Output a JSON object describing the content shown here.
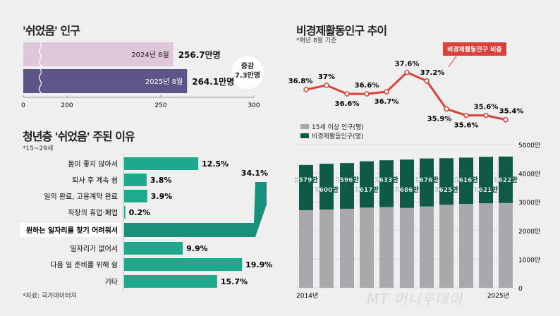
{
  "panel1": {
    "title": "'쉬었음' 인구",
    "change_label": "증감",
    "change_value": "7.3만명"
  },
  "panel2": {
    "title": "청년층 '쉬었음' 주된 이유",
    "note": "*15~29세",
    "source": "*자료: 국가데이터처"
  },
  "panel3": {
    "title": "비경제활동인구 추이",
    "note": "*매년 8월 기준",
    "callout": "비경제활동인구 비중",
    "legend": [
      "15세 이상 인구(명)",
      "비경제활동인구(명)"
    ]
  },
  "watermark": "MT 머니투데이",
  "colors": {
    "bar2024": "#dfc6d9",
    "bar2025": "#5d5487",
    "reasons": "#1ea98d",
    "reasons_highlight": "#17917a",
    "line": "#d9413a",
    "gray": "#a9a9ab",
    "green": "#0f5a45"
  },
  "chart_data": [
    {
      "type": "bar",
      "orientation": "horizontal",
      "categories": [
        "2024년 8월",
        "2025년 8월"
      ],
      "values": [
        256.7,
        264.1
      ],
      "value_labels": [
        "256.7만명",
        "264.1만명"
      ],
      "xlim": [
        0,
        300
      ],
      "axis_break": true,
      "xticks": [
        "0",
        "200",
        "250",
        "300"
      ]
    },
    {
      "type": "bar",
      "orientation": "horizontal",
      "categories": [
        "몸이 좋지 않아서",
        "퇴사 후 계속 쉼",
        "일의 완료, 고용계약 완료",
        "직장의 휴업·폐업",
        "원하는 일자리를 찾기 어려워서",
        "일자리가 없어서",
        "다음 일 준비를 위해 쉼",
        "기타"
      ],
      "values": [
        12.5,
        3.8,
        3.9,
        0.2,
        34.1,
        9.9,
        19.9,
        15.7
      ],
      "value_labels": [
        "12.5%",
        "3.8%",
        "3.9%",
        "0.2%",
        "34.1%",
        "9.9%",
        "19.9%",
        "15.7%"
      ],
      "highlight": "원하는 일자리를 찾기 어려워서"
    },
    {
      "type": "line",
      "series": [
        {
          "name": "비경제활동인구 비중",
          "values": [
            36.8,
            37.0,
            36.6,
            36.6,
            36.7,
            37.6,
            37.2,
            35.9,
            35.6,
            35.6,
            35.4
          ],
          "labels": [
            "36.8%",
            "37%",
            "36.6%",
            "36.6%",
            "36.7%",
            "37.6%",
            "37.2%",
            "35.9%",
            "35.6%",
            "35.6%",
            "35.4%"
          ]
        }
      ]
    },
    {
      "type": "bar",
      "stacked": true,
      "x_labels": [
        "2014년",
        "2025년"
      ],
      "ylim": [
        0,
        5000
      ],
      "yticks": [
        "0",
        "1000만",
        "2000만",
        "3000만",
        "4000만",
        "5000만"
      ],
      "grid": true,
      "series": [
        {
          "name": "15세 이상 인구(명)",
          "values": [
            2710,
            2730,
            2760,
            2800,
            2820,
            2790,
            2840,
            2900,
            2930,
            2950,
            2960
          ]
        },
        {
          "name": "비경제활동인구(명)",
          "values": [
            1579,
            1600,
            1596,
            1617,
            1633,
            1686,
            1676,
            1625,
            1616,
            1621,
            1622
          ],
          "labels": [
            "1579만",
            "1600만",
            "1596만",
            "1617만",
            "1633만",
            "1686만",
            "1676만",
            "1625만",
            "1616만",
            "1621만",
            "1622만"
          ]
        }
      ]
    }
  ]
}
